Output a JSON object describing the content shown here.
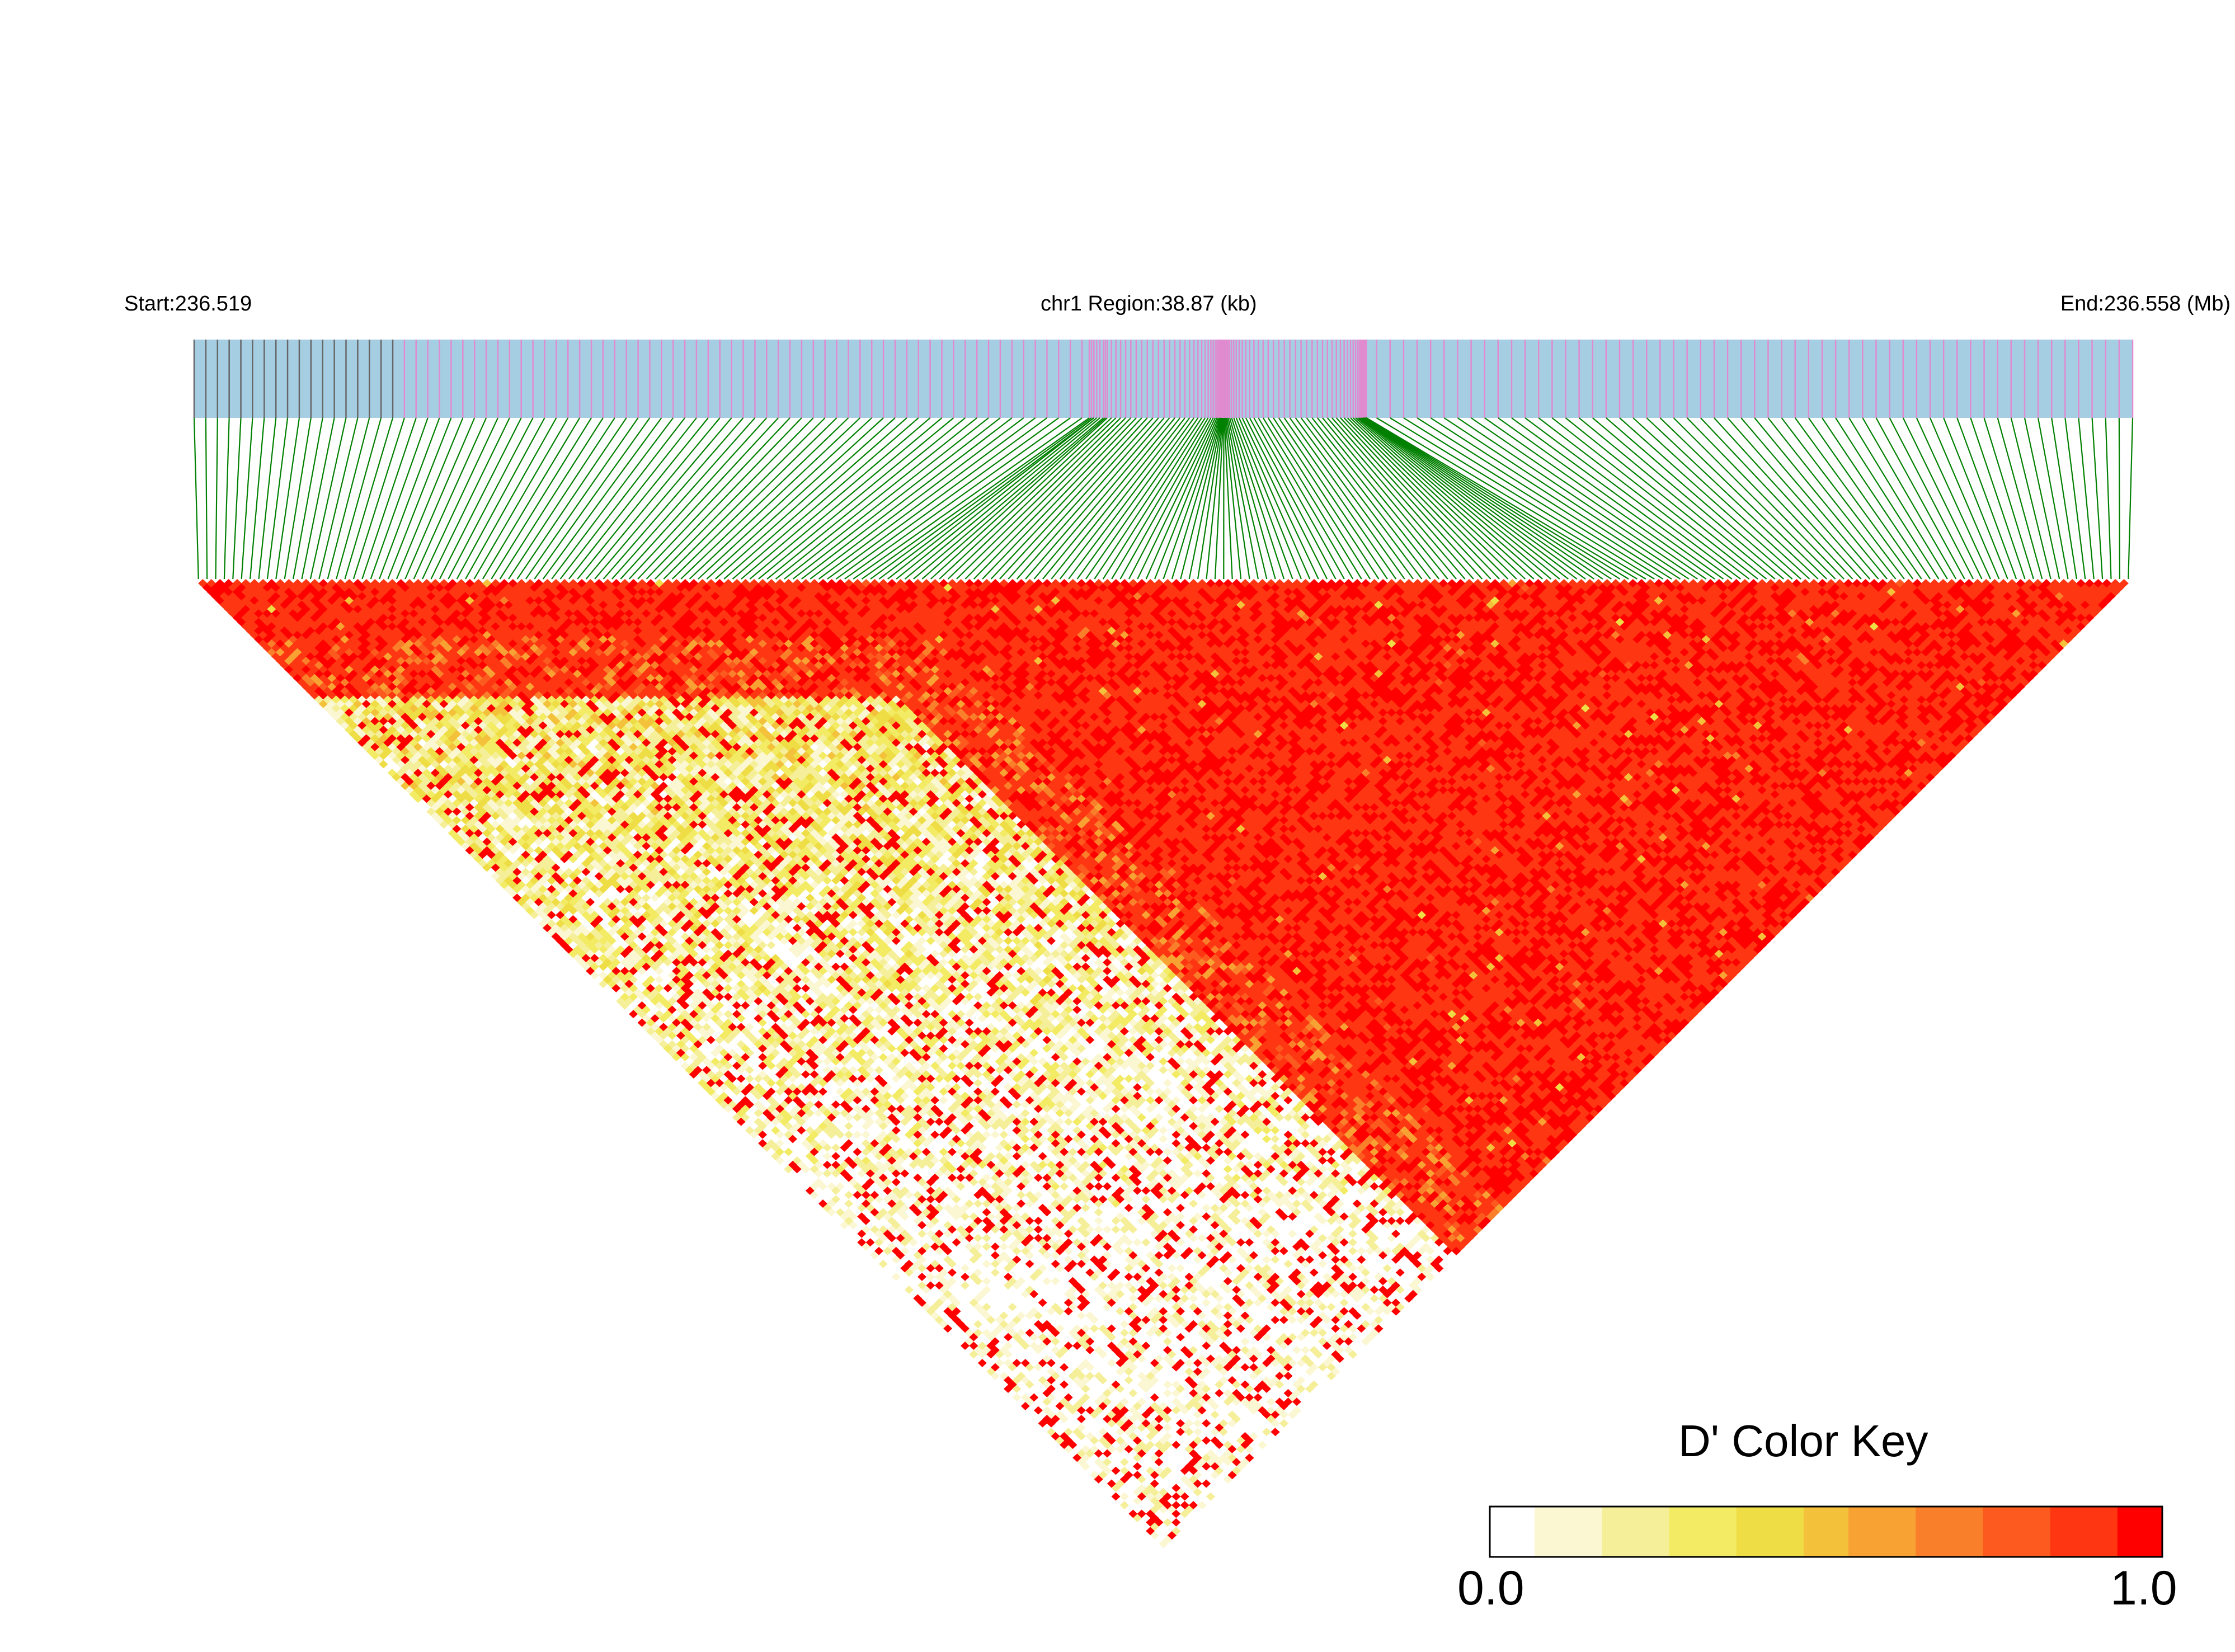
{
  "header": {
    "start_label": "Start:236.519",
    "region_label": "chr1 Region:38.87 (kb)",
    "end_label": "End:236.558 (Mb)"
  },
  "colors": {
    "gene_bar": "#a6cee3",
    "snp_tick_pink": "#e08ad0",
    "snp_tick_dark": "#666666",
    "connector_line": "#008000",
    "ld_high": "#ff0000",
    "ld_low": "#ffffff"
  },
  "chart_data": {
    "type": "heatmap",
    "metric": "D'",
    "region": {
      "chromosome": "chr1",
      "start_mb": 236.519,
      "end_mb": 236.558,
      "length_kb": 38.87
    },
    "n_snps": 225,
    "grid": false,
    "legend": {
      "title": "D' Color Key",
      "min_label": "0.0",
      "max_label": "1.0",
      "min": 0.0,
      "max": 1.0,
      "placement": "bottom-right",
      "colors": [
        "#ffffff",
        "#fbf7d2",
        "#f5ef9a",
        "#f2eb63",
        "#eedd45",
        "#f4c13a",
        "#f7a233",
        "#fa7f2a",
        "#fc5a1e",
        "#fe3612",
        "#ff0000"
      ]
    },
    "ld_pattern": {
      "description_low_region": "pairs among first ~30% of SNPs at large distance",
      "high_ld_fraction": 0.8
    }
  }
}
